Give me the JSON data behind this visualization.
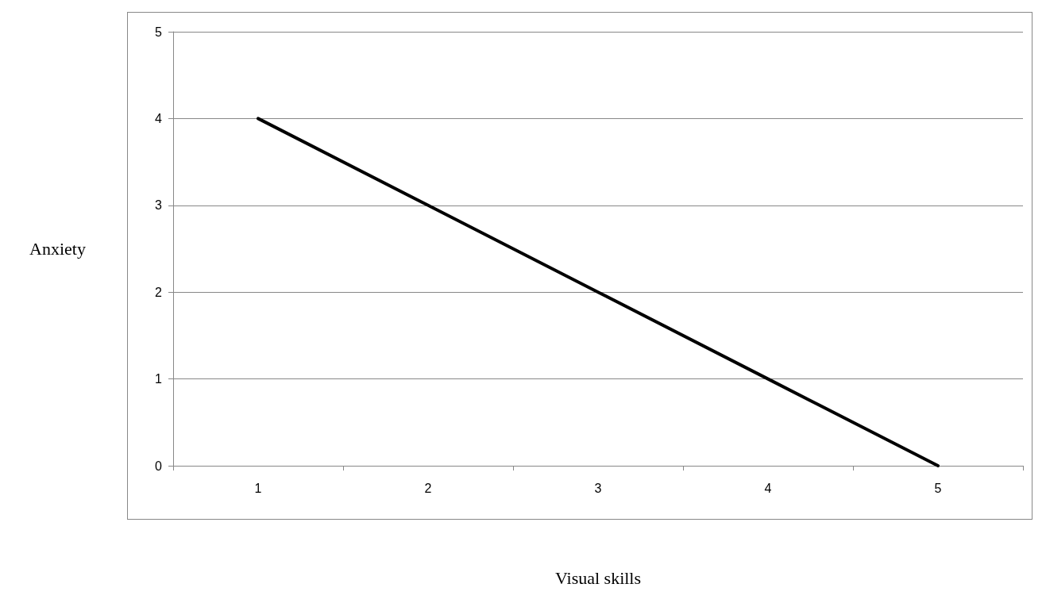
{
  "chart_data": {
    "type": "line",
    "xlabel": "Visual skills",
    "ylabel": "Anxiety",
    "categories": [
      "1",
      "2",
      "3",
      "4",
      "5"
    ],
    "series": [
      {
        "color": "#000000",
        "values": [
          4,
          3,
          2,
          1,
          0
        ]
      }
    ],
    "ylim": [
      0,
      5
    ],
    "yticks": [
      0,
      1,
      2,
      3,
      4,
      5
    ],
    "grid": "y",
    "marker": "none",
    "line_style": "solid"
  }
}
